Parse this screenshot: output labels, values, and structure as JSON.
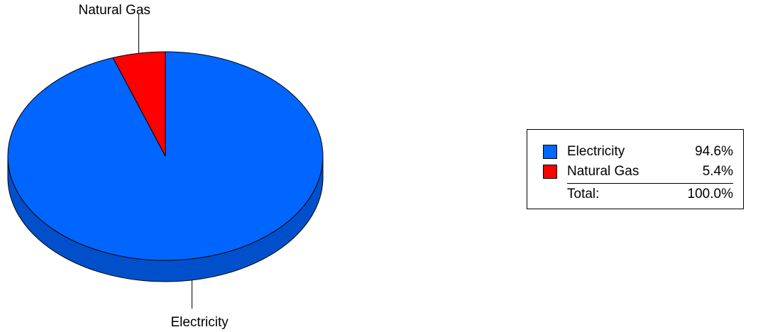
{
  "chart_data": {
    "type": "pie",
    "style": "3d",
    "categories": [
      "Electricity",
      "Natural Gas"
    ],
    "values": [
      94.6,
      5.4
    ],
    "unit": "%",
    "colors": [
      "#0066ff",
      "#ff0000"
    ],
    "side_colors": [
      "#0050cc",
      "#cc0000"
    ],
    "slice_labels": [
      "Electricity",
      "Natural Gas"
    ],
    "legend": {
      "position": "right",
      "items": [
        {
          "label": "Electricity",
          "value": "94.6%",
          "color": "#0066ff"
        },
        {
          "label": "Natural Gas",
          "value": "5.4%",
          "color": "#ff0000"
        }
      ],
      "total_label": "Total:",
      "total_value": "100.0%"
    }
  }
}
